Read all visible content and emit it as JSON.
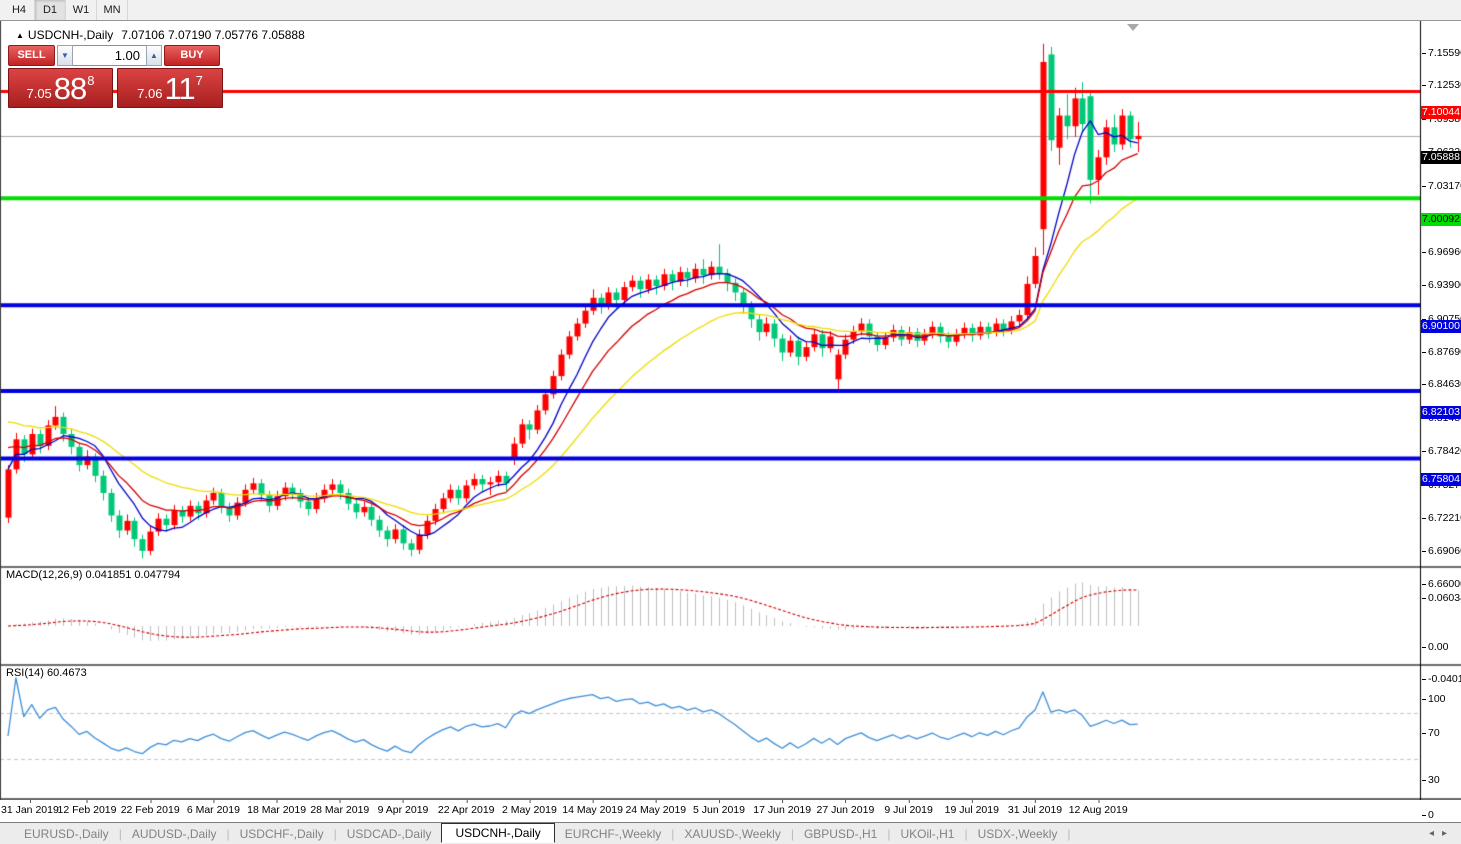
{
  "toolbar": {
    "timeframe_buttons": [
      {
        "label": "H4",
        "active": false
      },
      {
        "label": "D1",
        "active": true
      },
      {
        "label": "W1",
        "active": false
      },
      {
        "label": "MN",
        "active": false
      }
    ]
  },
  "chart_header": {
    "collapse_marker": "▲",
    "title": "USDCNH-,Daily",
    "ohlc_values": "7.07106 7.07190 7.05776 7.05888"
  },
  "trade_panel": {
    "sell_button": "SELL",
    "buy_button": "BUY",
    "volume_value": "1.00",
    "spin_down": "▼",
    "spin_up": "▲",
    "sell_price": {
      "prefix": "7.05",
      "big": "88",
      "sup": "8"
    },
    "buy_price": {
      "prefix": "7.06",
      "big": "11",
      "sup": "7"
    }
  },
  "price_axis": {
    "ticks": [
      7.1559,
      7.1253,
      7.0938,
      7.0632,
      7.0317,
      6.9696,
      6.939,
      6.9075,
      6.8769,
      6.8463,
      6.8148,
      6.7842,
      6.7527,
      6.7221,
      6.6906,
      6.66
    ]
  },
  "horizontal_lines": [
    {
      "value": 7.10044,
      "label": "7.10044",
      "color": "#ff0000",
      "text_color": "#ffffff",
      "thickness": 3
    },
    {
      "value": 7.00092,
      "label": "7.00092",
      "color": "#00dd00",
      "text_color": "#000000",
      "thickness": 4
    },
    {
      "value": 6.901,
      "label": "6.90100",
      "color": "#0000e0",
      "text_color": "#ffffff",
      "thickness": 4
    },
    {
      "value": 6.82103,
      "label": "6.82103",
      "color": "#0000e0",
      "text_color": "#ffffff",
      "thickness": 4
    },
    {
      "value": 6.75804,
      "label": "6.75804",
      "color": "#0000e0",
      "text_color": "#ffffff",
      "thickness": 4
    }
  ],
  "current_price": {
    "value": 7.05888,
    "label": "7.05888",
    "label_bg": "#000000",
    "label_fg": "#ffffff",
    "line_color": "#ababab"
  },
  "indicators": {
    "macd": {
      "label": "MACD(12,26,9) 0.041851 0.047794",
      "axis_labels": [
        {
          "text": "0.060343",
          "value": 0.060343
        },
        {
          "text": "0.00",
          "value": 0
        },
        {
          "text": "-0.040136",
          "value": -0.040136
        }
      ]
    },
    "rsi": {
      "label": "RSI(14) 60.4673",
      "axis_labels": [
        {
          "text": "100",
          "value": 100
        },
        {
          "text": "70",
          "value": 70
        },
        {
          "text": "30",
          "value": 30
        },
        {
          "text": "0",
          "value": 0
        }
      ],
      "levels": [
        70,
        30
      ]
    }
  },
  "date_axis": [
    {
      "bar": 2,
      "label": "31 Jan 2019"
    },
    {
      "bar": 10,
      "label": "12 Feb 2019"
    },
    {
      "bar": 18,
      "label": "22 Feb 2019"
    },
    {
      "bar": 26,
      "label": "6 Mar 2019"
    },
    {
      "bar": 34,
      "label": "18 Mar 2019"
    },
    {
      "bar": 42,
      "label": "28 Mar 2019"
    },
    {
      "bar": 50,
      "label": "9 Apr 2019"
    },
    {
      "bar": 58,
      "label": "22 Apr 2019"
    },
    {
      "bar": 66,
      "label": "2 May 2019"
    },
    {
      "bar": 74,
      "label": "14 May 2019"
    },
    {
      "bar": 82,
      "label": "24 May 2019"
    },
    {
      "bar": 90,
      "label": "5 Jun 2019"
    },
    {
      "bar": 98,
      "label": "17 Jun 2019"
    },
    {
      "bar": 106,
      "label": "27 Jun 2019"
    },
    {
      "bar": 114,
      "label": "9 Jul 2019"
    },
    {
      "bar": 122,
      "label": "19 Jul 2019"
    },
    {
      "bar": 130,
      "label": "31 Jul 2019"
    },
    {
      "bar": 138,
      "label": "12 Aug 2019"
    }
  ],
  "bottom_tabs": {
    "tabs": [
      {
        "label": "EURUSD-,Daily",
        "active": false
      },
      {
        "label": "AUDUSD-,Daily",
        "active": false
      },
      {
        "label": "USDCHF-,Daily",
        "active": false
      },
      {
        "label": "USDCAD-,Daily",
        "active": false
      },
      {
        "label": "USDCNH-,Daily",
        "active": true
      },
      {
        "label": "EURCHF-,Weekly",
        "active": false
      },
      {
        "label": "XAUUSD-,Weekly",
        "active": false
      },
      {
        "label": "GBPUSD-,H1",
        "active": false
      },
      {
        "label": "UKOil-,H1",
        "active": false
      },
      {
        "label": "USDX-,Weekly",
        "active": false
      }
    ],
    "scroll_left": "◂",
    "scroll_right": "▸"
  },
  "chart_data": {
    "type": "candlestick",
    "symbol": "USDCNH",
    "timeframe": "Daily",
    "price_range": {
      "top": 7.1643,
      "bottom": 6.6579
    },
    "bull_color": "#ff0000",
    "bear_color": "#00c878",
    "moving_averages": [
      {
        "kind": "sma",
        "period": 7,
        "color": "#0000c8",
        "seed": null
      },
      {
        "kind": "ema",
        "period": 12,
        "color": "#d40000",
        "seed": 6.772
      },
      {
        "kind": "ema",
        "period": 25,
        "color": "#f0dc00",
        "seed": 6.796
      }
    ],
    "macd_params": [
      12,
      26,
      9
    ],
    "macd_colors": {
      "histogram": "#c0c0c0",
      "signal": "#d00000"
    },
    "rsi_period": 14,
    "rsi_color": "#3f8fd9",
    "candles": [
      [
        6.703,
        6.752,
        6.698,
        6.748
      ],
      [
        6.748,
        6.782,
        6.744,
        6.776
      ],
      [
        6.776,
        6.78,
        6.755,
        6.762
      ],
      [
        6.762,
        6.786,
        6.758,
        6.781
      ],
      [
        6.781,
        6.785,
        6.763,
        6.77
      ],
      [
        6.77,
        6.794,
        6.766,
        6.789
      ],
      [
        6.789,
        6.807,
        6.785,
        6.797
      ],
      [
        6.797,
        6.801,
        6.774,
        6.781
      ],
      [
        6.781,
        6.786,
        6.762,
        6.769
      ],
      [
        6.769,
        6.773,
        6.746,
        6.752
      ],
      [
        6.752,
        6.766,
        6.748,
        6.76
      ],
      [
        6.76,
        6.763,
        6.736,
        6.742
      ],
      [
        6.742,
        6.747,
        6.719,
        6.726
      ],
      [
        6.726,
        6.73,
        6.699,
        6.705
      ],
      [
        6.705,
        6.71,
        6.684,
        6.691
      ],
      [
        6.691,
        6.706,
        6.687,
        6.7
      ],
      [
        6.7,
        6.703,
        6.676,
        6.683
      ],
      [
        6.683,
        6.687,
        6.665,
        6.672
      ],
      [
        6.672,
        6.695,
        6.668,
        6.69
      ],
      [
        6.69,
        6.707,
        6.686,
        6.702
      ],
      [
        6.702,
        6.706,
        6.69,
        6.696
      ],
      [
        6.696,
        6.715,
        6.692,
        6.71
      ],
      [
        6.71,
        6.714,
        6.698,
        6.704
      ],
      [
        6.704,
        6.719,
        6.7,
        6.714
      ],
      [
        6.714,
        6.718,
        6.701,
        6.707
      ],
      [
        6.707,
        6.724,
        6.703,
        6.719
      ],
      [
        6.719,
        6.731,
        6.715,
        6.726
      ],
      [
        6.726,
        6.73,
        6.707,
        6.713
      ],
      [
        6.713,
        6.717,
        6.699,
        6.705
      ],
      [
        6.705,
        6.722,
        6.701,
        6.717
      ],
      [
        6.717,
        6.734,
        6.713,
        6.729
      ],
      [
        6.729,
        6.74,
        6.725,
        6.735
      ],
      [
        6.735,
        6.739,
        6.718,
        6.724
      ],
      [
        6.724,
        6.728,
        6.708,
        6.714
      ],
      [
        6.714,
        6.728,
        6.71,
        6.723
      ],
      [
        6.723,
        6.736,
        6.719,
        6.731
      ],
      [
        6.731,
        6.735,
        6.72,
        6.726
      ],
      [
        6.726,
        6.73,
        6.712,
        6.718
      ],
      [
        6.718,
        6.722,
        6.705,
        6.711
      ],
      [
        6.711,
        6.726,
        6.707,
        6.721
      ],
      [
        6.721,
        6.734,
        6.717,
        6.729
      ],
      [
        6.729,
        6.739,
        6.725,
        6.734
      ],
      [
        6.734,
        6.738,
        6.72,
        6.726
      ],
      [
        6.726,
        6.73,
        6.71,
        6.716
      ],
      [
        6.716,
        6.72,
        6.702,
        6.708
      ],
      [
        6.708,
        6.718,
        6.704,
        6.713
      ],
      [
        6.713,
        6.717,
        6.695,
        6.701
      ],
      [
        6.701,
        6.705,
        6.685,
        6.691
      ],
      [
        6.691,
        6.695,
        6.676,
        6.683
      ],
      [
        6.683,
        6.697,
        6.679,
        6.692
      ],
      [
        6.692,
        6.696,
        6.673,
        6.679
      ],
      [
        6.679,
        6.683,
        6.667,
        6.673
      ],
      [
        6.673,
        6.692,
        6.669,
        6.687
      ],
      [
        6.687,
        6.705,
        6.683,
        6.7
      ],
      [
        6.7,
        6.716,
        6.696,
        6.711
      ],
      [
        6.711,
        6.726,
        6.707,
        6.721
      ],
      [
        6.721,
        6.734,
        6.717,
        6.729
      ],
      [
        6.729,
        6.733,
        6.715,
        6.721
      ],
      [
        6.721,
        6.738,
        6.717,
        6.733
      ],
      [
        6.733,
        6.744,
        6.729,
        6.739
      ],
      [
        6.739,
        6.743,
        6.728,
        6.734
      ],
      [
        6.734,
        6.741,
        6.724,
        6.736
      ],
      [
        6.736,
        6.747,
        6.732,
        6.742
      ],
      [
        6.742,
        6.746,
        6.728,
        6.735
      ],
      [
        6.758,
        6.778,
        6.752,
        6.772
      ],
      [
        6.772,
        6.795,
        6.768,
        6.79
      ],
      [
        6.79,
        6.794,
        6.776,
        6.785
      ],
      [
        6.785,
        6.808,
        6.781,
        6.803
      ],
      [
        6.803,
        6.823,
        6.799,
        6.818
      ],
      [
        6.818,
        6.84,
        6.814,
        6.835
      ],
      [
        6.835,
        6.86,
        6.831,
        6.855
      ],
      [
        6.855,
        6.877,
        6.851,
        6.872
      ],
      [
        6.872,
        6.889,
        6.868,
        6.884
      ],
      [
        6.884,
        6.901,
        6.88,
        6.896
      ],
      [
        6.896,
        6.916,
        6.892,
        6.908
      ],
      [
        6.908,
        6.912,
        6.893,
        6.901
      ],
      [
        6.901,
        6.918,
        6.897,
        6.913
      ],
      [
        6.913,
        6.917,
        6.898,
        6.906
      ],
      [
        6.906,
        6.923,
        6.902,
        6.918
      ],
      [
        6.918,
        6.929,
        6.914,
        6.924
      ],
      [
        6.924,
        6.928,
        6.908,
        6.916
      ],
      [
        6.916,
        6.93,
        6.912,
        6.925
      ],
      [
        6.925,
        6.929,
        6.911,
        6.919
      ],
      [
        6.919,
        6.935,
        6.915,
        6.93
      ],
      [
        6.93,
        6.934,
        6.915,
        6.923
      ],
      [
        6.923,
        6.937,
        6.919,
        6.932
      ],
      [
        6.932,
        6.936,
        6.918,
        6.926
      ],
      [
        6.926,
        6.94,
        6.922,
        6.935
      ],
      [
        6.935,
        6.944,
        6.921,
        6.929
      ],
      [
        6.929,
        6.942,
        6.925,
        6.937
      ],
      [
        6.937,
        6.958,
        6.925,
        6.931
      ],
      [
        6.931,
        6.935,
        6.914,
        6.922
      ],
      [
        6.922,
        6.926,
        6.905,
        6.913
      ],
      [
        6.913,
        6.917,
        6.893,
        6.901
      ],
      [
        6.901,
        6.905,
        6.88,
        6.888
      ],
      [
        6.888,
        6.892,
        6.868,
        6.876
      ],
      [
        6.876,
        6.89,
        6.872,
        6.884
      ],
      [
        6.884,
        6.888,
        6.862,
        6.87
      ],
      [
        6.87,
        6.874,
        6.849,
        6.857
      ],
      [
        6.857,
        6.873,
        6.853,
        6.868
      ],
      [
        6.868,
        6.872,
        6.845,
        6.853
      ],
      [
        6.853,
        6.867,
        6.849,
        6.862
      ],
      [
        6.862,
        6.879,
        6.858,
        6.874
      ],
      [
        6.874,
        6.878,
        6.853,
        6.861
      ],
      [
        6.861,
        6.877,
        6.857,
        6.872
      ],
      [
        6.832,
        6.86,
        6.822,
        6.855
      ],
      [
        6.855,
        6.874,
        6.851,
        6.869
      ],
      [
        6.869,
        6.882,
        6.865,
        6.877
      ],
      [
        6.877,
        6.889,
        6.873,
        6.884
      ],
      [
        6.884,
        6.888,
        6.866,
        6.872
      ],
      [
        6.872,
        6.876,
        6.858,
        6.864
      ],
      [
        6.864,
        6.876,
        6.86,
        6.871
      ],
      [
        6.871,
        6.883,
        6.867,
        6.878
      ],
      [
        6.878,
        6.882,
        6.863,
        6.869
      ],
      [
        6.869,
        6.881,
        6.865,
        6.876
      ],
      [
        6.876,
        6.88,
        6.862,
        6.868
      ],
      [
        6.868,
        6.879,
        6.864,
        6.874
      ],
      [
        6.874,
        6.886,
        6.87,
        6.881
      ],
      [
        6.881,
        6.885,
        6.866,
        6.872
      ],
      [
        6.872,
        6.876,
        6.861,
        6.867
      ],
      [
        6.867,
        6.879,
        6.863,
        6.874
      ],
      [
        6.874,
        6.885,
        6.87,
        6.88
      ],
      [
        6.88,
        6.884,
        6.867,
        6.873
      ],
      [
        6.873,
        6.886,
        6.869,
        6.881
      ],
      [
        6.881,
        6.885,
        6.87,
        6.876
      ],
      [
        6.876,
        6.889,
        6.872,
        6.884
      ],
      [
        6.884,
        6.888,
        6.872,
        6.878
      ],
      [
        6.878,
        6.891,
        6.874,
        6.886
      ],
      [
        6.886,
        6.897,
        6.882,
        6.892
      ],
      [
        6.892,
        6.928,
        6.888,
        6.921
      ],
      [
        6.921,
        6.955,
        6.917,
        6.947
      ],
      [
        6.972,
        7.145,
        6.948,
        7.128
      ],
      [
        7.135,
        7.142,
        7.045,
        7.055
      ],
      [
        7.048,
        7.085,
        7.032,
        7.078
      ],
      [
        7.078,
        7.098,
        7.056,
        7.068
      ],
      [
        7.068,
        7.104,
        7.058,
        7.094
      ],
      [
        7.094,
        7.109,
        7.062,
        7.07
      ],
      [
        7.096,
        7.1,
        6.996,
        7.018
      ],
      [
        7.018,
        7.046,
        7.004,
        7.039
      ],
      [
        7.039,
        7.074,
        7.032,
        7.067
      ],
      [
        7.067,
        7.079,
        7.044,
        7.051
      ],
      [
        7.051,
        7.084,
        7.046,
        7.078
      ],
      [
        7.078,
        7.082,
        7.048,
        7.056
      ],
      [
        7.056,
        7.072,
        7.044,
        7.059
      ]
    ]
  }
}
